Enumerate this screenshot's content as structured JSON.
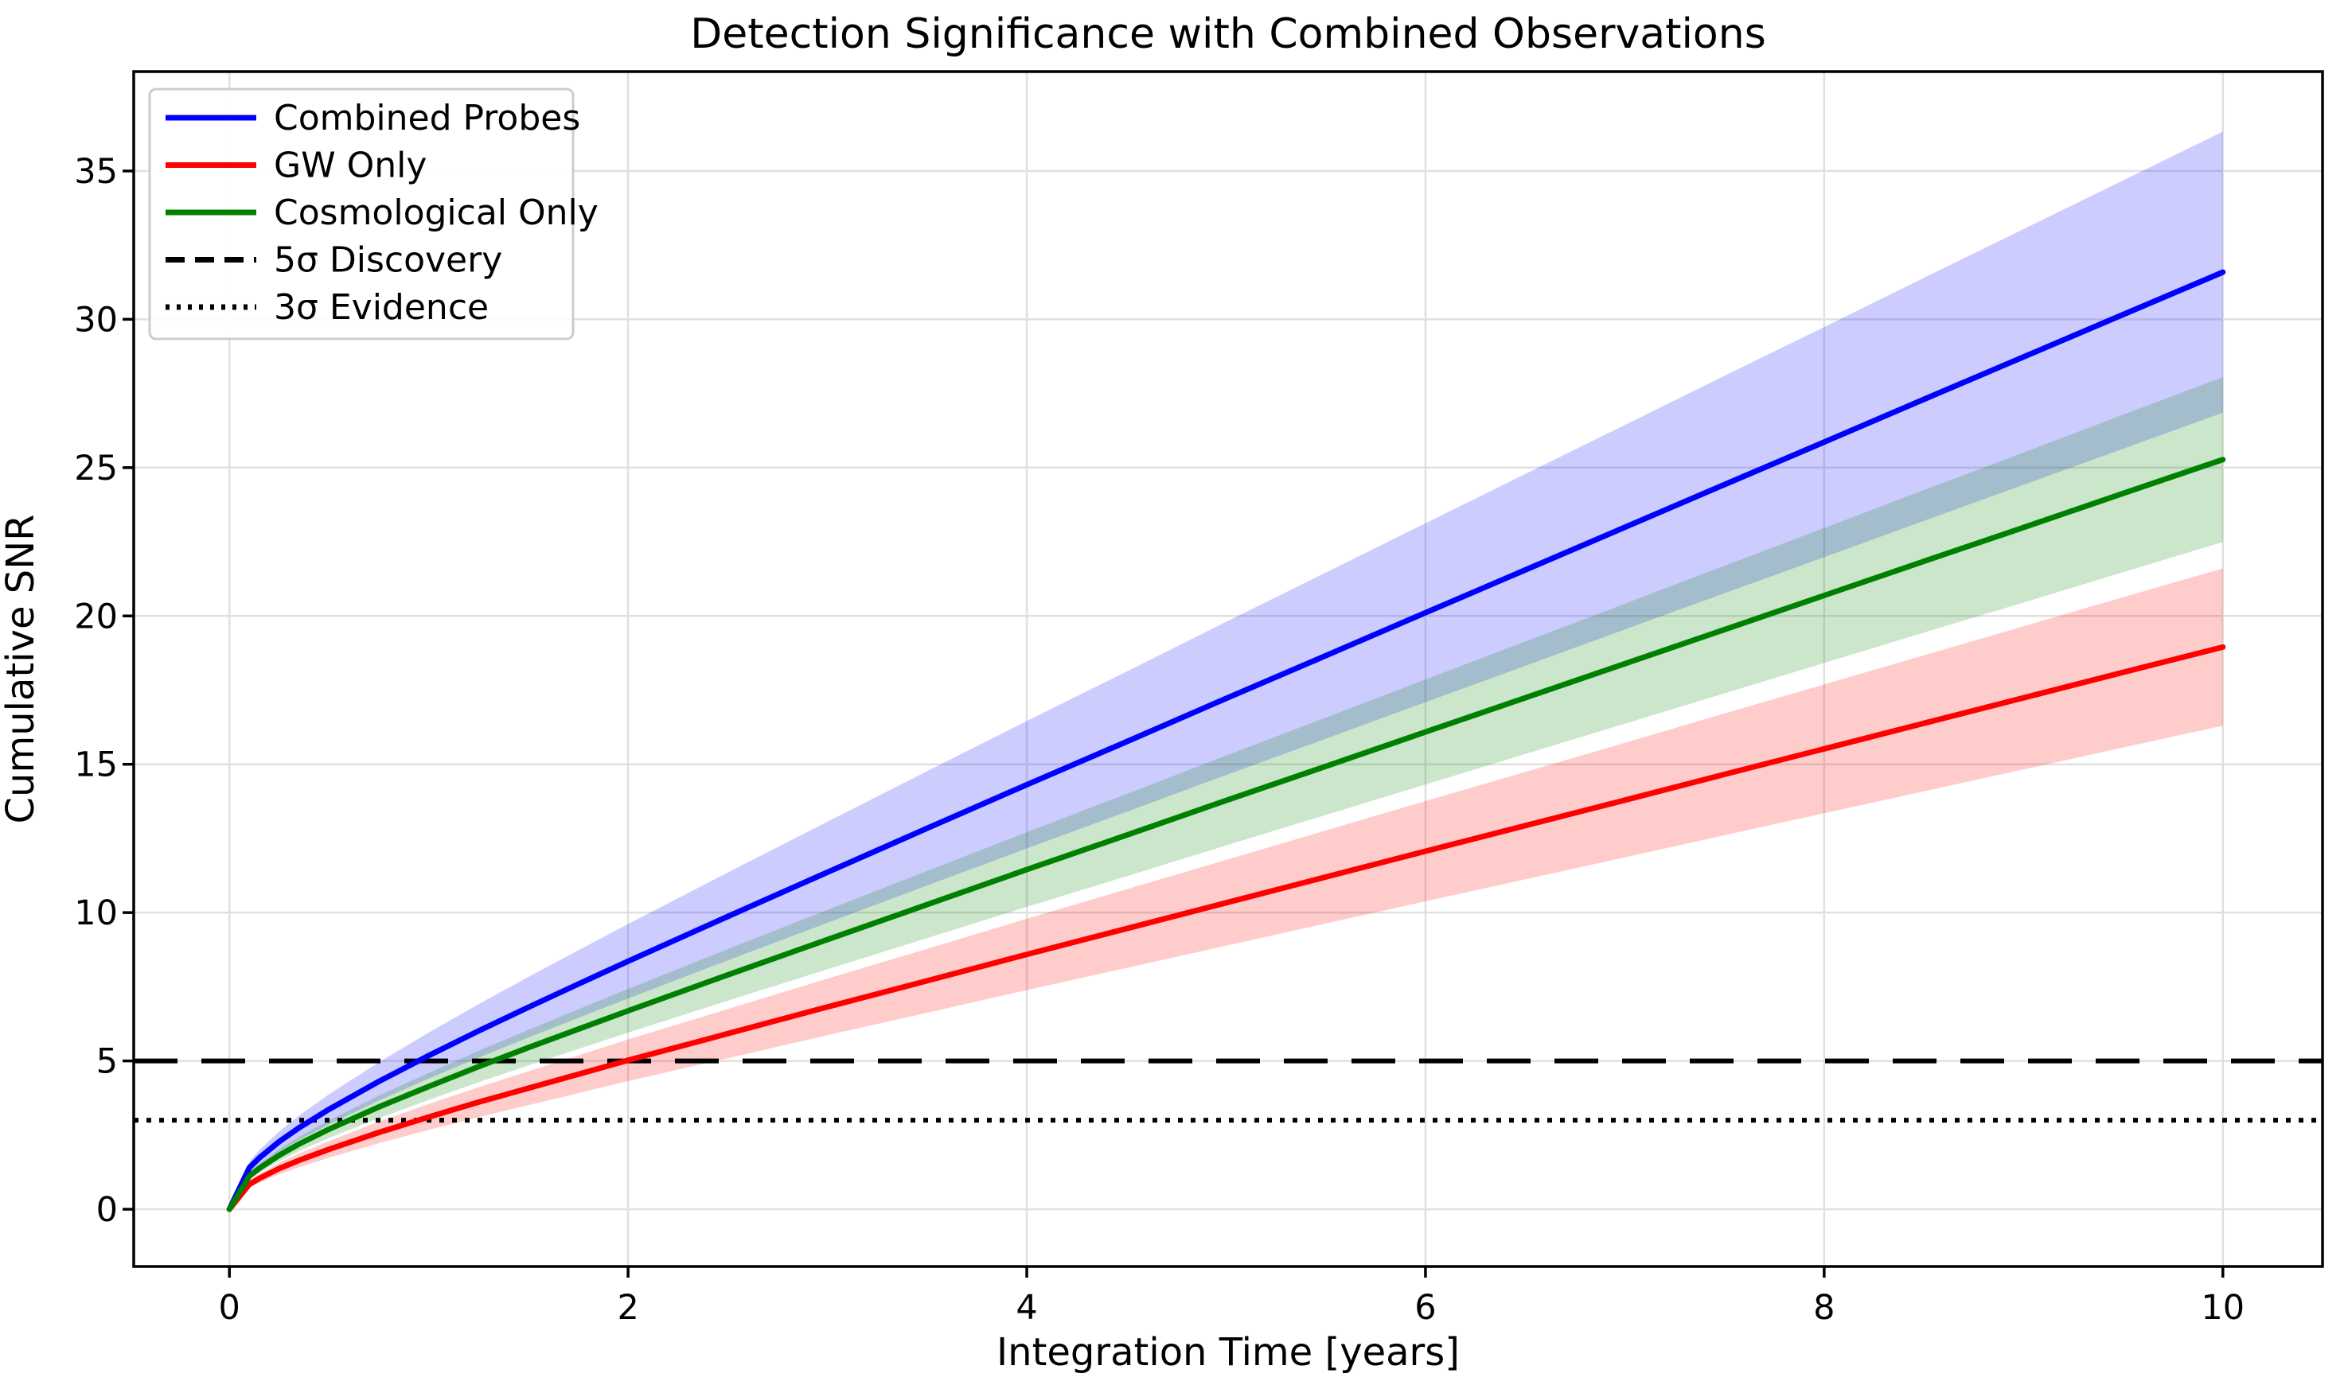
{
  "chart_data": {
    "type": "line",
    "title": "Detection Significance with Combined Observations",
    "xlabel": "Integration Time [years]",
    "ylabel": "Cumulative SNR",
    "xlim": [
      -0.48,
      10.5
    ],
    "ylim": [
      -1.93,
      38.35
    ],
    "xticks": [
      0,
      2,
      4,
      6,
      8,
      10
    ],
    "yticks": [
      0,
      5,
      10,
      15,
      20,
      25,
      30,
      35
    ],
    "grid": true,
    "legend_position": "upper-left",
    "x": [
      0,
      0.1,
      0.15,
      0.25,
      0.35,
      0.5,
      0.75,
      1,
      1.25,
      1.5,
      1.75,
      2,
      2.5,
      3,
      3.5,
      4,
      4.5,
      5,
      5.5,
      6,
      6.5,
      7,
      7.5,
      8,
      8.5,
      9,
      9.5,
      10
    ],
    "series": [
      {
        "name": "Combined Probes",
        "color": "#0000ff",
        "band_fraction": 0.15,
        "values": [
          0,
          1.4,
          1.73,
          2.28,
          2.75,
          3.37,
          4.31,
          5.18,
          6.01,
          6.81,
          7.59,
          8.36,
          9.87,
          11.36,
          12.84,
          14.31,
          15.76,
          17.22,
          18.66,
          20.11,
          21.55,
          22.99,
          24.43,
          25.86,
          27.3,
          28.73,
          30.16,
          31.59
        ]
      },
      {
        "name": "GW Only",
        "color": "#ff0000",
        "band_fraction": 0.14,
        "values": [
          0,
          0.84,
          1.04,
          1.37,
          1.65,
          2.02,
          2.59,
          3.11,
          3.61,
          4.08,
          4.55,
          5.02,
          5.92,
          6.82,
          7.7,
          8.59,
          9.46,
          10.33,
          11.2,
          12.07,
          12.93,
          13.79,
          14.66,
          15.52,
          16.38,
          17.24,
          18.1,
          18.95
        ]
      },
      {
        "name": "Cosmological Only",
        "color": "#008000",
        "band_fraction": 0.11,
        "values": [
          0,
          1.12,
          1.38,
          1.82,
          2.2,
          2.7,
          3.45,
          4.14,
          4.81,
          5.45,
          6.07,
          6.69,
          7.9,
          9.09,
          10.27,
          11.45,
          12.61,
          13.78,
          14.93,
          16.09,
          17.24,
          18.39,
          19.54,
          20.69,
          21.84,
          22.98,
          24.13,
          25.27
        ]
      }
    ],
    "reference_lines": [
      {
        "name": "5σ Discovery",
        "y": 5,
        "style": "dashed",
        "color": "#000000"
      },
      {
        "name": "3σ Evidence",
        "y": 3,
        "style": "dotted",
        "color": "#000000"
      }
    ],
    "legend_entries": [
      "Combined Probes",
      "GW Only",
      "Cosmological Only",
      "5σ Discovery",
      "3σ Evidence"
    ],
    "colors": {
      "background": "#ffffff",
      "grid": "#e0e0e0",
      "frame": "#000000",
      "text": "#000000",
      "legend_border": "#cccccc"
    }
  }
}
